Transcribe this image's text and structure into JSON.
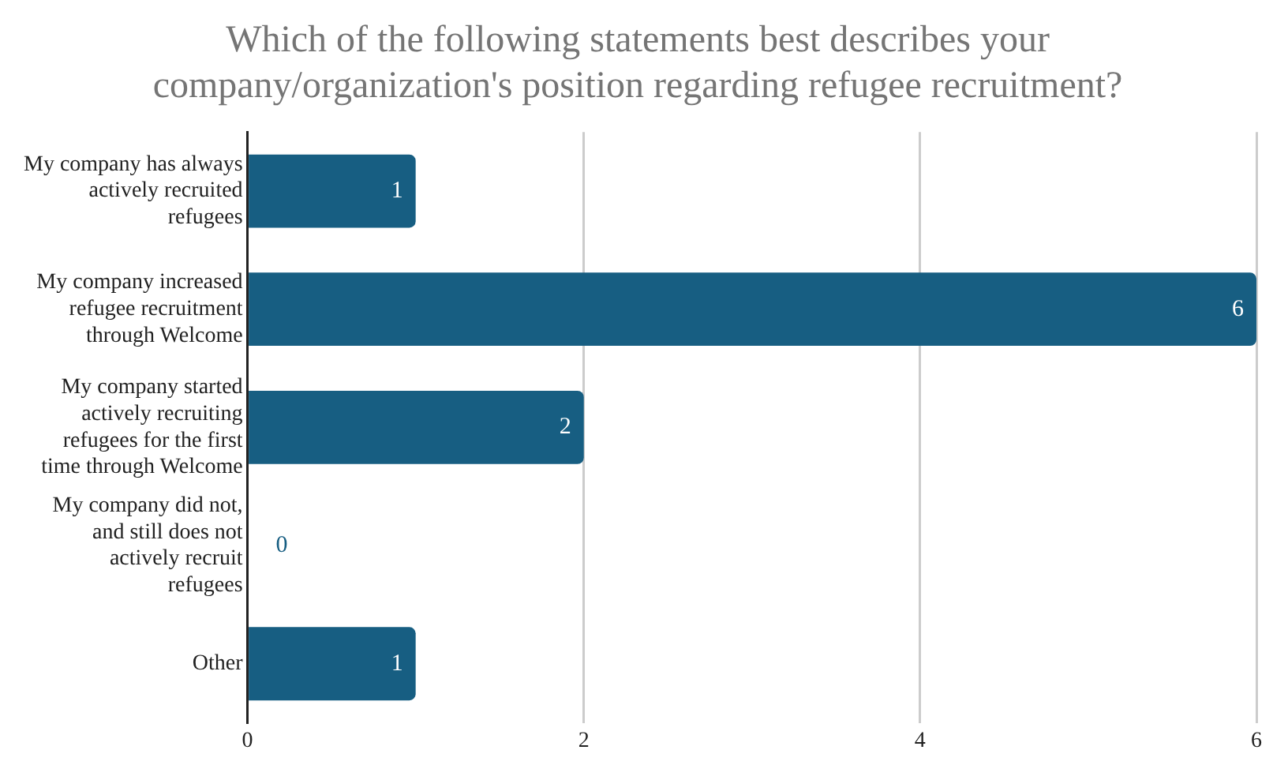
{
  "chart_data": {
    "type": "bar",
    "orientation": "horizontal",
    "title": "Which of the following statements best describes your company/organization's position regarding refugee recruitment?",
    "categories": [
      "My company has always actively recruited refugees",
      "My company increased refugee recruitment through Welcome",
      "My company started actively recruiting refugees for the first time through Welcome",
      "My company did not, and still does not actively recruit refugees",
      "Other"
    ],
    "values": [
      1,
      6,
      2,
      0,
      1
    ],
    "color": "#175e82",
    "xlim": [
      0,
      6
    ],
    "xticks": [
      0,
      2,
      4,
      6
    ],
    "grid": "x",
    "data_labels": true,
    "legend": false
  }
}
